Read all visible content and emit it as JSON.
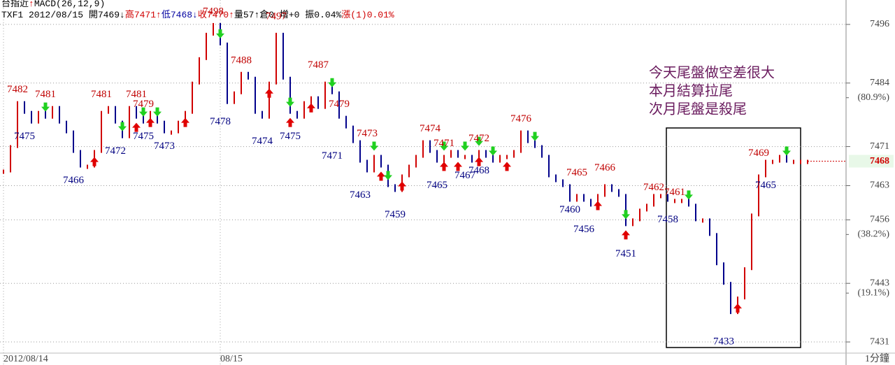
{
  "header": {
    "line1": [
      {
        "text": "台指近",
        "color": "#000000"
      },
      {
        "text": "↑",
        "color": "#e00000"
      },
      {
        "text": "MACD(26,12,9)",
        "color": "#000000"
      }
    ],
    "line2": [
      {
        "text": "TXF1 2012/08/15 開7469↓",
        "color": "#000000"
      },
      {
        "text": "高7471↑",
        "color": "#d00000"
      },
      {
        "text": "低7468↓",
        "color": "#0000a0"
      },
      {
        "text": "收7470↑",
        "color": "#d00000"
      },
      {
        "text": "量57↑倉0 增+0 振0.04%",
        "color": "#000000"
      },
      {
        "text": "漲(1)0.01%",
        "color": "#d00000"
      }
    ]
  },
  "chart_data": {
    "type": "bar",
    "values": [
      7466,
      7471,
      7480,
      7478,
      7476,
      7478,
      7477,
      7479,
      7476,
      7474,
      7470,
      7467,
      7467,
      7470,
      7478,
      7479,
      7476,
      7473,
      7479,
      7477,
      7476,
      7478,
      7476,
      7474,
      7474,
      7476,
      7478,
      7484,
      7489,
      7494,
      7496,
      7492,
      7480,
      7482,
      7486,
      7485,
      7478,
      7477,
      7484,
      7494,
      7485,
      7478,
      7477,
      7480,
      7481,
      7479,
      7484,
      7482,
      7477,
      7475,
      7472,
      7468,
      7466,
      7469,
      7467,
      7463,
      7462,
      7465,
      7467,
      7469,
      7472,
      7470,
      7468,
      7469,
      7470,
      7469,
      7469,
      7468,
      7470,
      7469,
      7468,
      7469,
      7469,
      7470,
      7474,
      7472,
      7471,
      7469,
      7465,
      7464,
      7463,
      7460,
      7461,
      7460,
      7459,
      7461,
      7463,
      7462,
      7461,
      7455,
      7456,
      7458,
      7459,
      7461,
      7461,
      7460,
      7460,
      7460,
      7459,
      7456,
      7456,
      7453,
      7447,
      7443,
      7437,
      7440,
      7446,
      7457,
      7465,
      7468,
      7468,
      7469,
      7468,
      7468,
      7468,
      7468
    ],
    "up_color": "#d00000",
    "down_color": "#00008b",
    "ylim": [
      7428,
      7501
    ],
    "yticks": [
      7496,
      7484,
      7471,
      7463,
      7456,
      7443,
      7431
    ],
    "fib_levels": [
      {
        "value": 7481,
        "label": "(80.9%)"
      },
      {
        "value": 7453,
        "label": "(38.2%)"
      },
      {
        "value": 7441,
        "label": "(19.1%)"
      }
    ],
    "grid": true,
    "last_price": 7468,
    "highs": [
      {
        "x": 2,
        "value": 7482
      },
      {
        "x": 6,
        "value": 7481
      },
      {
        "x": 14,
        "value": 7481
      },
      {
        "x": 19,
        "value": 7481
      },
      {
        "x": 20,
        "value": 7479
      },
      {
        "x": 30,
        "value": 7498
      },
      {
        "x": 34,
        "value": 7488
      },
      {
        "x": 39,
        "value": 7497
      },
      {
        "x": 45,
        "value": 7487
      },
      {
        "x": 48,
        "value": 7479
      },
      {
        "x": 52,
        "value": 7473
      },
      {
        "x": 61,
        "value": 7474
      },
      {
        "x": 63,
        "value": 7471
      },
      {
        "x": 68,
        "value": 7472
      },
      {
        "x": 74,
        "value": 7476
      },
      {
        "x": 82,
        "value": 7465
      },
      {
        "x": 86,
        "value": 7466
      },
      {
        "x": 93,
        "value": 7462
      },
      {
        "x": 96,
        "value": 7461
      },
      {
        "x": 108,
        "value": 7469
      }
    ],
    "lows": [
      {
        "x": 3,
        "value": 7475
      },
      {
        "x": 10,
        "value": 7466
      },
      {
        "x": 16,
        "value": 7472
      },
      {
        "x": 20,
        "value": 7475
      },
      {
        "x": 23,
        "value": 7473
      },
      {
        "x": 31,
        "value": 7478
      },
      {
        "x": 37,
        "value": 7474
      },
      {
        "x": 41,
        "value": 7475
      },
      {
        "x": 47,
        "value": 7471
      },
      {
        "x": 51,
        "value": 7463
      },
      {
        "x": 56,
        "value": 7459
      },
      {
        "x": 62,
        "value": 7465
      },
      {
        "x": 66,
        "value": 7467
      },
      {
        "x": 68,
        "value": 7468
      },
      {
        "x": 81,
        "value": 7460
      },
      {
        "x": 83,
        "value": 7456
      },
      {
        "x": 89,
        "value": 7451
      },
      {
        "x": 95,
        "value": 7458
      },
      {
        "x": 103,
        "value": 7433
      },
      {
        "x": 109,
        "value": 7465
      }
    ],
    "buy_signals": [
      13,
      19,
      21,
      26,
      38,
      41,
      44,
      54,
      57,
      63,
      65,
      68,
      72,
      85,
      89,
      105
    ],
    "sell_signals": [
      6,
      17,
      20,
      22,
      31,
      41,
      47,
      53,
      55,
      63,
      66,
      68,
      70,
      76,
      89,
      98,
      112
    ],
    "xlabels": [
      {
        "x": 0,
        "label": "2012/08/14"
      },
      {
        "x": 31,
        "label": "08/15"
      }
    ],
    "interval": "1分鐘",
    "annotation": [
      "今天尾盤做空差很大",
      "本月結算拉尾",
      "次月尾盤是殺尾"
    ]
  }
}
